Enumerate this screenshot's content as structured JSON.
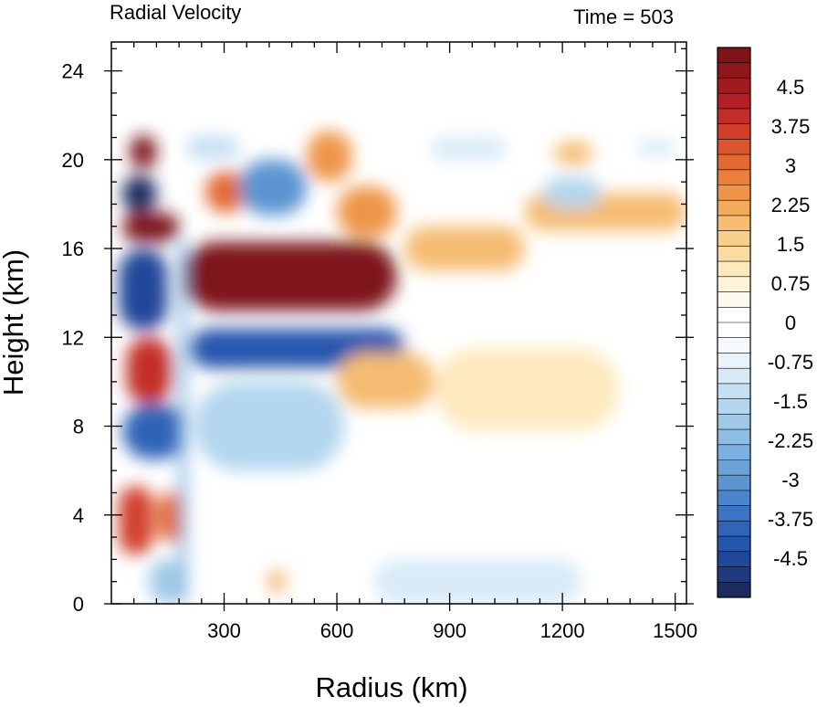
{
  "chart_data": {
    "type": "heatmap",
    "title": "Radial Velocity",
    "time_label": "Time = 503",
    "xlabel": "Radius (km)",
    "ylabel": "Height (km)",
    "xlim": [
      0,
      1530
    ],
    "ylim": [
      0,
      25.3
    ],
    "x_ticks": [
      {
        "value": 300,
        "label": "300"
      },
      {
        "value": 600,
        "label": "600"
      },
      {
        "value": 900,
        "label": "900"
      },
      {
        "value": 1200,
        "label": "1200"
      },
      {
        "value": 1500,
        "label": "1500"
      }
    ],
    "y_ticks": [
      {
        "value": 0,
        "label": "0"
      },
      {
        "value": 4,
        "label": "4"
      },
      {
        "value": 8,
        "label": "8"
      },
      {
        "value": 12,
        "label": "12"
      },
      {
        "value": 16,
        "label": "16"
      },
      {
        "value": 20,
        "label": "20"
      },
      {
        "value": 24,
        "label": "24"
      }
    ],
    "colorbar": {
      "range": [
        -5.25,
        5.25
      ],
      "colors": [
        "#1d2b5e",
        "#1f3a7f",
        "#21479a",
        "#2556ae",
        "#2f64b8",
        "#3b74c2",
        "#4a84ca",
        "#5b94d2",
        "#6aa3d8",
        "#7cb0de",
        "#8dbde3",
        "#a0c9e8",
        "#b3d5ee",
        "#c6e0f3",
        "#d8eaf7",
        "#e9f3fb",
        "#f6f9fd",
        "#ffffff",
        "#ffffff",
        "#fffaf0",
        "#fff3d8",
        "#fde9bd",
        "#fadca3",
        "#f7cd8a",
        "#f5bc72",
        "#f2aa5d",
        "#ef954a",
        "#ea7f3c",
        "#e46a33",
        "#dc542e",
        "#d13f2a",
        "#c32d27",
        "#b21f24",
        "#a01a20",
        "#8e171c",
        "#7e141a"
      ],
      "labels": [
        {
          "value": 4.5,
          "label": "4.5"
        },
        {
          "value": 3.75,
          "label": "3.75"
        },
        {
          "value": 3,
          "label": "3"
        },
        {
          "value": 2.25,
          "label": "2.25"
        },
        {
          "value": 1.5,
          "label": "1.5"
        },
        {
          "value": 0.75,
          "label": "0.75"
        },
        {
          "value": 0,
          "label": "0"
        },
        {
          "value": -0.75,
          "label": "-0.75"
        },
        {
          "value": -1.5,
          "label": "-1.5"
        },
        {
          "value": -2.25,
          "label": "-2.25"
        },
        {
          "value": -3,
          "label": "-3"
        },
        {
          "value": -3.75,
          "label": "-3.75"
        },
        {
          "value": -4.5,
          "label": "-4.5"
        }
      ]
    },
    "features": [
      {
        "r": [
          190,
          760
        ],
        "h": [
          13.2,
          16.3
        ],
        "value": 5.3
      },
      {
        "r": [
          30,
          180
        ],
        "h": [
          16.3,
          17.6
        ],
        "value": 5.2
      },
      {
        "r": [
          50,
          120
        ],
        "h": [
          19.6,
          21.1
        ],
        "value": 5.2
      },
      {
        "r": [
          30,
          120
        ],
        "h": [
          17.6,
          19.3
        ],
        "value": -5.0
      },
      {
        "r": [
          20,
          150
        ],
        "h": [
          12.3,
          16.0
        ],
        "value": -4.6
      },
      {
        "r": [
          210,
          780
        ],
        "h": [
          10.6,
          12.4
        ],
        "value": -4.2
      },
      {
        "r": [
          40,
          160
        ],
        "h": [
          9.0,
          12.0
        ],
        "value": 3.8
      },
      {
        "r": [
          30,
          200
        ],
        "h": [
          6.5,
          9.0
        ],
        "value": -4.0
      },
      {
        "r": [
          20,
          110
        ],
        "h": [
          2.2,
          5.3
        ],
        "value": 3.5
      },
      {
        "r": [
          120,
          200
        ],
        "h": [
          2.8,
          5.0
        ],
        "value": 3.0
      },
      {
        "r": [
          250,
          360
        ],
        "h": [
          17.6,
          19.5
        ],
        "value": 3.0
      },
      {
        "r": [
          340,
          520
        ],
        "h": [
          17.5,
          20.0
        ],
        "value": -3.2
      },
      {
        "r": [
          520,
          640
        ],
        "h": [
          19.0,
          21.3
        ],
        "value": 2.6
      },
      {
        "r": [
          600,
          760
        ],
        "h": [
          16.5,
          18.8
        ],
        "value": 2.4
      },
      {
        "r": [
          780,
          1100
        ],
        "h": [
          15.0,
          17.0
        ],
        "value": 2.0
      },
      {
        "r": [
          1100,
          1530
        ],
        "h": [
          16.8,
          18.5
        ],
        "value": 1.8
      },
      {
        "r": [
          1180,
          1280
        ],
        "h": [
          19.8,
          20.8
        ],
        "value": 2.0
      },
      {
        "r": [
          1150,
          1300
        ],
        "h": [
          17.8,
          19.2
        ],
        "value": -1.5
      },
      {
        "r": [
          1400,
          1500
        ],
        "h": [
          20.2,
          20.9
        ],
        "value": -1.0
      },
      {
        "r": [
          600,
          860
        ],
        "h": [
          8.8,
          11.3
        ],
        "value": 2.0
      },
      {
        "r": [
          860,
          1350
        ],
        "h": [
          7.8,
          11.5
        ],
        "value": 1.0
      },
      {
        "r": [
          220,
          620
        ],
        "h": [
          6.0,
          10.0
        ],
        "value": -1.6
      },
      {
        "r": [
          420,
          460
        ],
        "h": [
          0.5,
          1.5
        ],
        "value": 2.2
      },
      {
        "r": [
          100,
          200
        ],
        "h": [
          0.0,
          2.0
        ],
        "value": -2.0
      },
      {
        "r": [
          700,
          1250
        ],
        "h": [
          0.0,
          2.0
        ],
        "value": -0.9
      },
      {
        "r": [
          180,
          200
        ],
        "h": [
          0.0,
          16.4
        ],
        "value": -2.5
      },
      {
        "r": [
          200,
          340
        ],
        "h": [
          20.0,
          21.1
        ],
        "value": -1.3
      },
      {
        "r": [
          850,
          1050
        ],
        "h": [
          20.0,
          21.0
        ],
        "value": -0.9
      }
    ]
  }
}
